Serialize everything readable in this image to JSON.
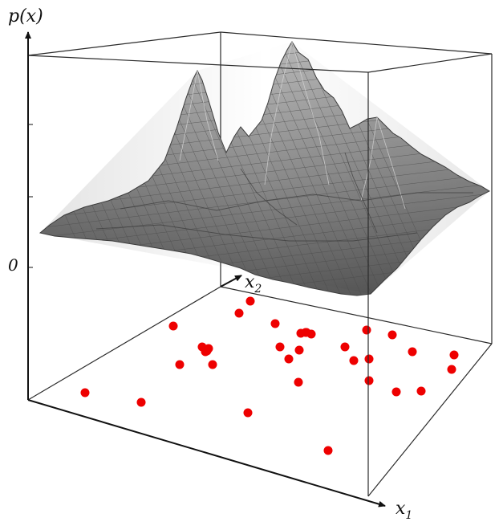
{
  "labels": {
    "y_axis": "p(x)",
    "zero": "0",
    "x1_base": "x",
    "x1_sub": "1",
    "x2_base": "x",
    "x2_sub": "2"
  },
  "colors": {
    "box_line": "#2b2b2b",
    "surface_fill": "#8c8c8c",
    "surface_dark": "#5e5e5e",
    "surface_light": "#b5b5b5",
    "mesh_line": "#3f3f3f",
    "sample_point": "#ee0000"
  },
  "sample_point_count": 33
}
